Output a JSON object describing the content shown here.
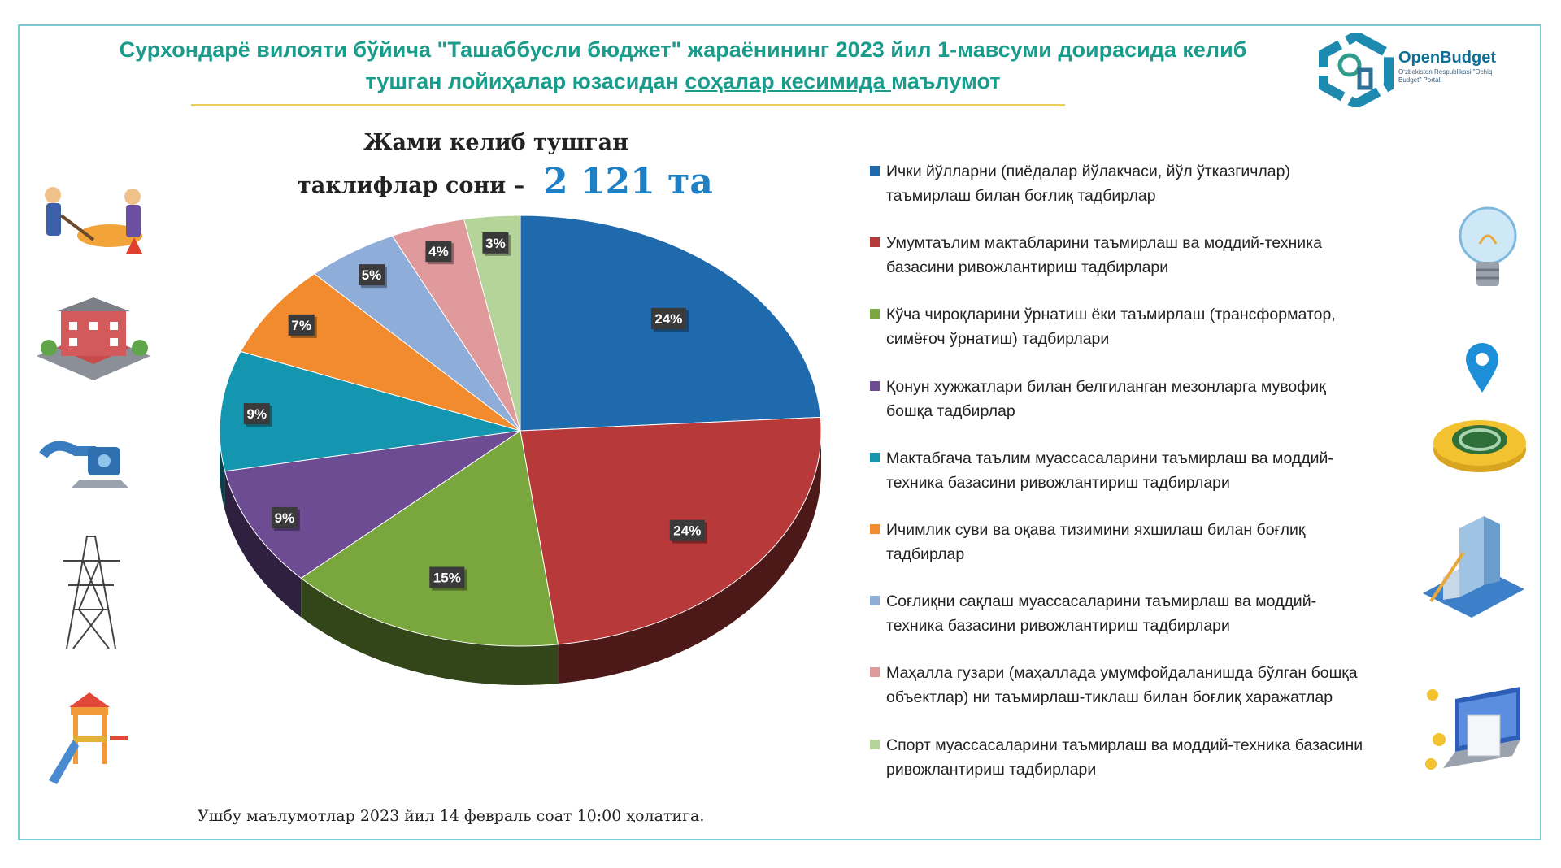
{
  "header": {
    "title_line1": "Сурхондарё вилояти бўйича \"Ташаббусли бюджет\" жараёнининг 2023 йил 1-мавсуми доирасида келиб",
    "title_line2_prefix": "тушган лойиҳалар юзасидан ",
    "title_line2_highlight": "соҳалар кесимида ",
    "title_line2_suffix": "маълумот"
  },
  "logo": {
    "name": "OpenBudget",
    "subtitle": "Oʻzbekiston Respublikasi \"Ochiq Budget\" Portali"
  },
  "summary": {
    "label_line1": "Жами келиб тушган",
    "label_line2": "таклифлар сони –",
    "value": "2 121 та"
  },
  "footnote": "Ушбу маълумотлар 2023 йил 14 февраль соат 10:00 ҳолатига.",
  "colors": {
    "accent_title": "#1a9c8c",
    "total_value": "#1e7fc4",
    "title_rule": "#e6cf5a"
  },
  "side_icons": {
    "left": [
      "road-workers-icon",
      "school-building-icon",
      "water-pump-icon",
      "power-tower-icon",
      "playground-icon"
    ],
    "right": [
      "light-bulb-icon",
      "map-pin-icon",
      "manhole-icon",
      "building-blueprint-icon",
      "payment-laptop-icon"
    ]
  },
  "chart_data": {
    "type": "pie",
    "title": "",
    "total": "2 121",
    "data_labels": [
      "24%",
      "24%",
      "15%",
      "9%",
      "9%",
      "7%",
      "5%",
      "4%",
      "3%"
    ],
    "series": [
      {
        "name": "Ички йўлларни (пиёдалар йўлакчаси, йўл ўтказгичлар) таъмирлаш билан боғлиқ тадбирлар",
        "value": 24,
        "color": "#1f6aad"
      },
      {
        "name": "Умумтаълим мактабларини таъмирлаш ва моддий-техника базасини ривожлантириш тадбирлари",
        "value": 24,
        "color": "#b8393a"
      },
      {
        "name": "Кўча чироқларини ўрнатиш ёки таъмирлаш (трансформатор, симёғоч ўрнатиш) тадбирлари",
        "value": 15,
        "color": "#79a63d"
      },
      {
        "name": "Қонун хужжатлари билан белгиланган мезонларга мувофиқ бошқа тадбирлар",
        "value": 9,
        "color": "#6e4c94"
      },
      {
        "name": "Мактабгача таълим муассасаларини таъмирлаш ва моддий-техника базасини ривожлантириш тадбирлари",
        "value": 9,
        "color": "#1596b0"
      },
      {
        "name": "Ичимлик суви ва оқава тизимини яхшилаш билан боғлиқ тадбирлар",
        "value": 7,
        "color": "#f28a2e"
      },
      {
        "name": "Соғлиқни сақлаш муассасаларини таъмирлаш ва моддий-техника базасини ривожлантириш тадбирлари",
        "value": 5,
        "color": "#8eadd9"
      },
      {
        "name": "Маҳалла гузари (маҳаллада умумфойдаланишда бўлган бошқа объектлар) ни таъмирлаш-тиклаш билан боғлиқ харажатлар",
        "value": 4,
        "color": "#e09a9b"
      },
      {
        "name": "Спорт муассасаларини таъмирлаш ва моддий-техника базасини ривожлантириш тадбирлари",
        "value": 3,
        "color": "#b5d49a"
      }
    ],
    "legend_position": "right"
  }
}
